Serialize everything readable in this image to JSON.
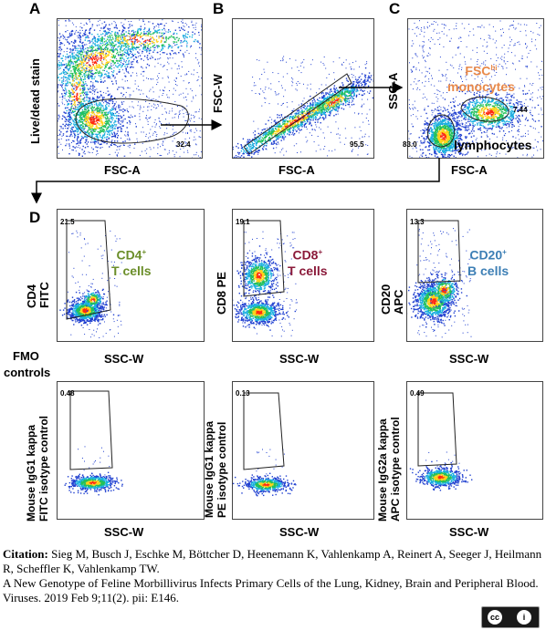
{
  "panels": {
    "A": {
      "letter": "A",
      "x_label": "FSC-A",
      "y_label": "Live/dead stain",
      "gate_value": "32.4"
    },
    "B": {
      "letter": "B",
      "x_label": "FSC-A",
      "y_label": "FSC-W",
      "gate_value": "95.5"
    },
    "C": {
      "letter": "C",
      "x_label": "FSC-A",
      "y_label": "SSC-A",
      "gate_mono_value": "7.44",
      "gate_lymph_value": "83.0",
      "mono_label_main": "FSC",
      "mono_label_sup": "hi",
      "mono_label_sub": "monocytes",
      "lymph_label": "lymphocytes"
    },
    "D": {
      "letter": "D"
    }
  },
  "stain_row": [
    {
      "y_label_1": "CD4",
      "y_label_2": "FITC",
      "x_label": "SSC-W",
      "gate_value": "21.5",
      "pop_main": "CD4",
      "pop_sup": "+",
      "pop_sub": "T cells",
      "pop_color": "#6b8e2a"
    },
    {
      "y_label_1": "CD8 PE",
      "y_label_2": "",
      "x_label": "SSC-W",
      "gate_value": "19.1",
      "pop_main": "CD8",
      "pop_sup": "+",
      "pop_sub": "T cells",
      "pop_color": "#8b1a3a"
    },
    {
      "y_label_1": "CD20",
      "y_label_2": "APC",
      "x_label": "SSC-W",
      "gate_value": "13.3",
      "pop_main": "CD20",
      "pop_sup": "+",
      "pop_sub": "B cells",
      "pop_color": "#3d7fb5"
    }
  ],
  "fmo_label_1": "FMO",
  "fmo_label_2": "controls",
  "fmo_row": [
    {
      "y_label_1": "Mouse IgG1 kappa",
      "y_label_2": "FITC isotype control",
      "x_label": "SSC-W",
      "gate_value": "0.48"
    },
    {
      "y_label_1": "Mouse IgG1 kappa",
      "y_label_2": "PE isotype control",
      "x_label": "SSC-W",
      "gate_value": "0.13"
    },
    {
      "y_label_1": "Mouse IgG2a kappa",
      "y_label_2": "APC isotype control",
      "x_label": "SSC-W",
      "gate_value": "0.49"
    }
  ],
  "citation": {
    "label": "Citation:",
    "authors": " Sieg M, Busch J, Eschke M, Böttcher D, Heenemann K, Vahlenkamp A, Reinert A, Seeger J, Heilmann R, Scheffler K, Vahlenkamp TW.",
    "title": "A New Genotype of Feline Morbillivirus Infects Primary Cells of the Lung, Kidney, Brain and Peripheral Blood.",
    "journal": "Viruses. 2019 Feb 9;11(2). pii: E146."
  },
  "license": {
    "cc": "cc",
    "by": "i",
    "caption": "BY"
  },
  "colors": {
    "gate": "#222222",
    "arrow": "#000000",
    "density_low": "#1f3fd0",
    "density_mid": "#22c05a",
    "density_high": "#ff2a10"
  }
}
